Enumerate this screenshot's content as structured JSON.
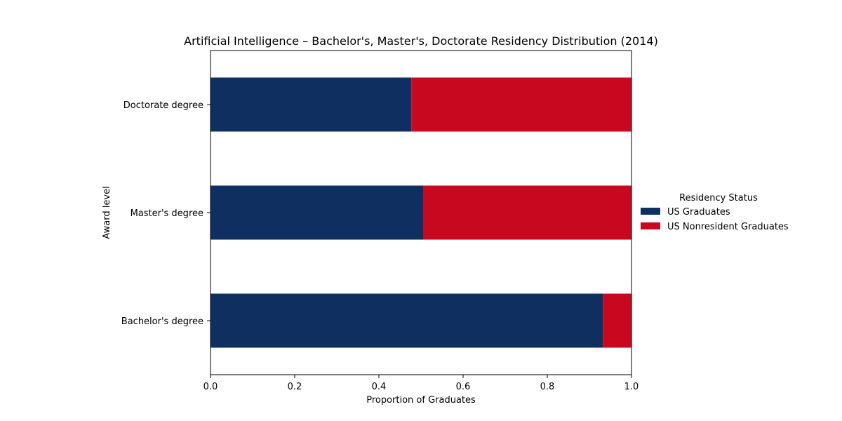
{
  "chart_data": {
    "type": "bar",
    "orientation": "horizontal",
    "stacked": true,
    "title": "Artificial Intelligence – Bachelor's, Master's, Doctorate Residency Distribution (2014)",
    "xlabel": "Proportion of Graduates",
    "ylabel": "Award level",
    "categories": [
      "Bachelor's degree",
      "Master's degree",
      "Doctorate degree"
    ],
    "series": [
      {
        "name": "US Graduates",
        "color": "#0e2f60",
        "values": [
          0.932,
          0.505,
          0.477
        ]
      },
      {
        "name": "US Nonresident Graduates",
        "color": "#c8081f",
        "values": [
          0.068,
          0.495,
          0.523
        ]
      }
    ],
    "xlim": [
      0,
      1
    ],
    "xticks": [
      "0.0",
      "0.2",
      "0.4",
      "0.6",
      "0.8",
      "1.0"
    ],
    "grid": false,
    "legend": {
      "title": "Residency Status",
      "placement": "right"
    }
  }
}
